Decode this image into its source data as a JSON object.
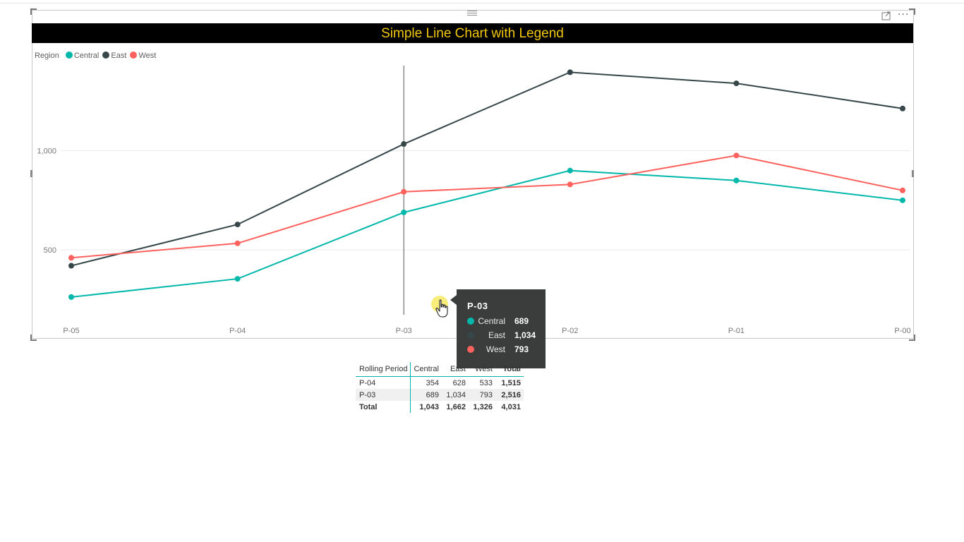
{
  "visual": {
    "title": "Simple Line Chart with Legend",
    "title_color": "#f2c80f",
    "title_background": "#000000",
    "header_icons": [
      "focus-mode-icon",
      "more-options-icon"
    ]
  },
  "legend": {
    "title": "Region",
    "items": [
      {
        "label": "Central",
        "color": "#01b8aa"
      },
      {
        "label": "East",
        "color": "#374649"
      },
      {
        "label": "West",
        "color": "#fd625e"
      }
    ],
    "placement": "top-left"
  },
  "chart_data": {
    "type": "line",
    "title": "Simple Line Chart with Legend",
    "xlabel": "",
    "ylabel": "",
    "categories": [
      "P-05",
      "P-04",
      "P-03",
      "P-02",
      "P-01",
      "P-00"
    ],
    "y_ticks": [
      {
        "value": 500,
        "label": "500"
      },
      {
        "value": 1000,
        "label": "1,000"
      }
    ],
    "ylim": [
      130,
      1440
    ],
    "grid": true,
    "legend_placement": "top-left",
    "series": [
      {
        "name": "Central",
        "color": "#01b8aa",
        "values": [
          262,
          354,
          689,
          900,
          850,
          750
        ]
      },
      {
        "name": "East",
        "color": "#374649",
        "values": [
          420,
          628,
          1034,
          1396,
          1340,
          1213
        ]
      },
      {
        "name": "West",
        "color": "#fd625e",
        "values": [
          460,
          533,
          793,
          830,
          976,
          800
        ]
      }
    ],
    "hover_category": "P-03"
  },
  "tooltip": {
    "title": "P-03",
    "rows": [
      {
        "label": "Central",
        "value": "689",
        "color": "#01b8aa"
      },
      {
        "label": "East",
        "value": "1,034",
        "color": "#374649"
      },
      {
        "label": "West",
        "value": "793",
        "color": "#fd625e"
      }
    ]
  },
  "matrix": {
    "header": [
      "Rolling Period",
      "Central",
      "East",
      "West",
      "Total"
    ],
    "rows": [
      {
        "label": "P-04",
        "cells": [
          "354",
          "628",
          "533",
          "1,515"
        ]
      },
      {
        "label": "P-03",
        "cells": [
          "689",
          "1,034",
          "793",
          "2,516"
        ]
      }
    ],
    "total": {
      "label": "Total",
      "cells": [
        "1,043",
        "1,662",
        "1,326",
        "4,031"
      ]
    }
  }
}
